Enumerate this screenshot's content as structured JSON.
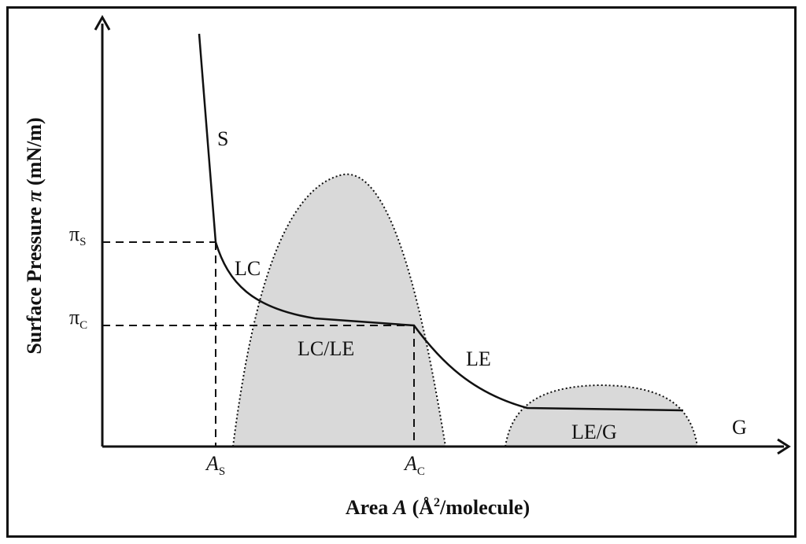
{
  "diagram": {
    "y_axis_title": {
      "prefix": "Surface Pressure ",
      "symbol": "π",
      "suffix": " (mN/m)"
    },
    "x_axis_title": {
      "prefix": "Area ",
      "symbol": "A",
      "mid": " (Å",
      "sup": "2",
      "suffix": "/molecule)"
    },
    "y_ticks": [
      {
        "main": "π",
        "sub": "S"
      },
      {
        "main": "π",
        "sub": "C"
      }
    ],
    "x_ticks": [
      {
        "main": "A",
        "sub": "S"
      },
      {
        "main": "A",
        "sub": "C"
      }
    ],
    "phase_labels": [
      "S",
      "LC",
      "LC/LE",
      "LE",
      "LE/G",
      "G"
    ],
    "colors": {
      "region_fill": "#d9d9d9",
      "line": "#111111"
    }
  }
}
